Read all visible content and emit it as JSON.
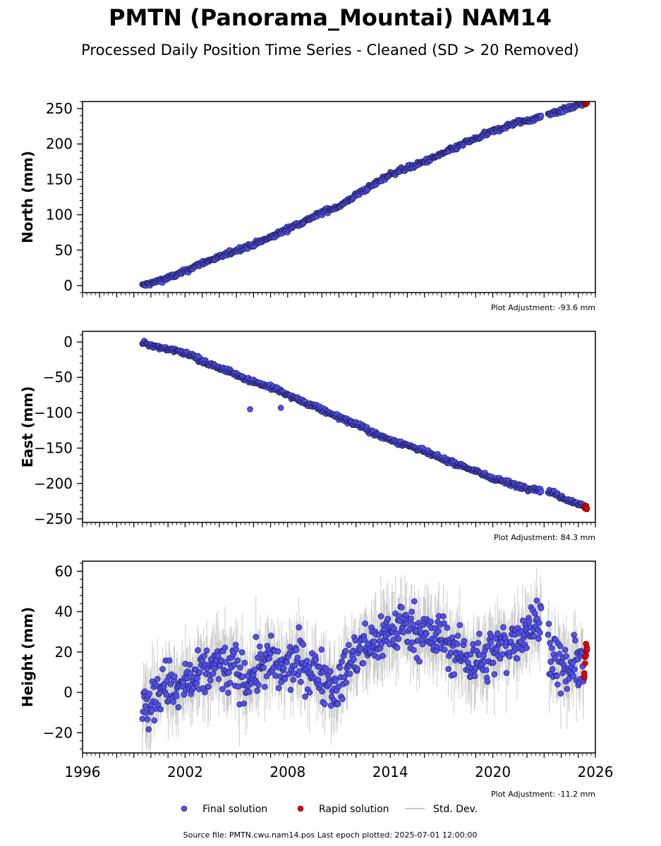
{
  "title": "PMTN (Panorama_Mountai) NAM14",
  "subtitle": "Processed Daily Position Time Series - Cleaned (SD > 20 Removed)",
  "colors": {
    "final": "#5050f0",
    "final_edge": "#1a1a40",
    "rapid": "#e00000",
    "stddev": "#b8b8b8",
    "axis": "#000000"
  },
  "legend": {
    "position": "bottom-center",
    "items": [
      {
        "label": "Final solution",
        "type": "dot",
        "color": "#5050f0"
      },
      {
        "label": "Rapid solution",
        "type": "dot",
        "color": "#e00000"
      },
      {
        "label": "Std. Dev.",
        "type": "line",
        "color": "#b8b8b8"
      }
    ]
  },
  "footer": "Source file: PMTN.cwu.nam14.pos  Last epoch plotted: 2025-07-01 12:00:00",
  "chart_data": [
    {
      "type": "scatter",
      "ylabel": "North (mm)",
      "adjustment": "Plot Adjustment: -93.6 mm",
      "xlim": [
        1996,
        2026
      ],
      "ylim": [
        -10,
        260
      ],
      "yticks": [
        0,
        50,
        100,
        150,
        200,
        250
      ],
      "xticks": [],
      "grid": false,
      "series": [
        {
          "name": "Final solution",
          "x": [
            1999.5,
            2000.0,
            2000.5,
            2001.0,
            2001.5,
            2002.0,
            2002.5,
            2003.0,
            2003.5,
            2004.0,
            2004.5,
            2005.0,
            2005.5,
            2006.0,
            2006.5,
            2007.0,
            2007.5,
            2008.0,
            2008.5,
            2009.0,
            2009.5,
            2010.0,
            2010.5,
            2011.0,
            2011.5,
            2012.0,
            2012.5,
            2013.0,
            2013.5,
            2014.0,
            2014.5,
            2015.0,
            2015.5,
            2016.0,
            2016.5,
            2017.0,
            2017.5,
            2018.0,
            2018.5,
            2019.0,
            2019.5,
            2020.0,
            2020.5,
            2021.0,
            2021.5,
            2022.0,
            2022.5,
            2023.0,
            2023.5,
            2024.0,
            2024.5,
            2025.0,
            2025.3
          ],
          "y": [
            0,
            3,
            7,
            11,
            15,
            20,
            26,
            32,
            36,
            40,
            45,
            50,
            54,
            58,
            63,
            68,
            74,
            80,
            86,
            91,
            97,
            103,
            108,
            112,
            119,
            128,
            135,
            142,
            150,
            157,
            162,
            166,
            170,
            175,
            180,
            186,
            191,
            197,
            203,
            207,
            213,
            218,
            222,
            227,
            231,
            233,
            236,
            241,
            244,
            247,
            251,
            255,
            257
          ],
          "scatter": 3
        },
        {
          "name": "Rapid solution",
          "x": [
            2025.35,
            2025.4,
            2025.45,
            2025.5
          ],
          "y": [
            257,
            258,
            257,
            259
          ],
          "scatter": 1
        }
      ]
    },
    {
      "type": "scatter",
      "ylabel": "East (mm)",
      "adjustment": "Plot Adjustment: 84.3 mm",
      "xlim": [
        1996,
        2026
      ],
      "ylim": [
        -255,
        15
      ],
      "yticks": [
        0,
        -50,
        -100,
        -150,
        -200,
        -250
      ],
      "xticks": [],
      "grid": false,
      "series": [
        {
          "name": "Final solution",
          "x": [
            1999.5,
            2000.0,
            2000.5,
            2001.0,
            2001.5,
            2002.0,
            2002.5,
            2003.0,
            2003.5,
            2004.0,
            2004.5,
            2005.0,
            2005.5,
            2006.0,
            2006.5,
            2007.0,
            2007.5,
            2008.0,
            2008.5,
            2009.0,
            2009.5,
            2010.0,
            2010.5,
            2011.0,
            2011.5,
            2012.0,
            2012.5,
            2013.0,
            2013.5,
            2014.0,
            2014.5,
            2015.0,
            2015.5,
            2016.0,
            2016.5,
            2017.0,
            2017.5,
            2018.0,
            2018.5,
            2019.0,
            2019.5,
            2020.0,
            2020.5,
            2021.0,
            2021.5,
            2022.0,
            2022.5,
            2023.0,
            2023.5,
            2024.0,
            2024.5,
            2025.0,
            2025.3
          ],
          "y": [
            0,
            -5,
            -8,
            -10,
            -12,
            -15,
            -20,
            -28,
            -32,
            -37,
            -41,
            -46,
            -51,
            -56,
            -60,
            -64,
            -69,
            -75,
            -80,
            -86,
            -91,
            -96,
            -101,
            -106,
            -111,
            -116,
            -122,
            -128,
            -134,
            -138,
            -142,
            -146,
            -150,
            -155,
            -160,
            -165,
            -169,
            -173,
            -178,
            -183,
            -188,
            -192,
            -196,
            -200,
            -203,
            -206,
            -208,
            -210,
            -213,
            -219,
            -224,
            -229,
            -232
          ],
          "scatter": 3
        },
        {
          "name": "Rapid solution",
          "x": [
            2025.35,
            2025.4,
            2025.45,
            2025.5
          ],
          "y": [
            -232,
            -234,
            -233,
            -235
          ],
          "scatter": 1
        }
      ],
      "outliers": {
        "x": [
          2005.8,
          2007.6
        ],
        "y": [
          -95,
          -93
        ]
      }
    },
    {
      "type": "scatter",
      "ylabel": "Height (mm)",
      "adjustment": "Plot Adjustment: -11.2 mm",
      "xlim": [
        1996,
        2026
      ],
      "ylim": [
        -30,
        65
      ],
      "yticks": [
        60,
        40,
        20,
        0,
        -20
      ],
      "xticks": [
        1996,
        2002,
        2008,
        2014,
        2020,
        2026
      ],
      "grid": false,
      "series": [
        {
          "name": "Final solution",
          "x": [
            1999.5,
            2000.0,
            2000.5,
            2001.0,
            2001.5,
            2002.0,
            2002.5,
            2003.0,
            2003.5,
            2004.0,
            2004.5,
            2005.0,
            2005.5,
            2006.0,
            2006.5,
            2007.0,
            2007.5,
            2008.0,
            2008.5,
            2009.0,
            2009.5,
            2010.0,
            2010.5,
            2011.0,
            2011.5,
            2012.0,
            2012.5,
            2013.0,
            2013.5,
            2014.0,
            2014.5,
            2015.0,
            2015.5,
            2016.0,
            2016.5,
            2017.0,
            2017.5,
            2018.0,
            2018.5,
            2019.0,
            2019.5,
            2020.0,
            2020.5,
            2021.0,
            2021.5,
            2022.0,
            2022.5,
            2023.0,
            2023.5,
            2024.0,
            2024.5,
            2025.0,
            2025.3
          ],
          "y": [
            -3,
            -8,
            2,
            5,
            -2,
            6,
            4,
            8,
            12,
            14,
            10,
            12,
            6,
            9,
            14,
            15,
            10,
            12,
            16,
            13,
            10,
            9,
            6,
            2,
            14,
            18,
            22,
            24,
            28,
            30,
            32,
            34,
            31,
            30,
            26,
            28,
            22,
            20,
            16,
            18,
            15,
            20,
            22,
            24,
            28,
            32,
            34,
            36,
            18,
            12,
            10,
            14,
            16
          ],
          "scatter": 11
        },
        {
          "name": "Rapid solution",
          "x": [
            2025.35,
            2025.4,
            2025.45,
            2025.5
          ],
          "y": [
            10,
            15,
            18,
            22
          ],
          "scatter": 3
        }
      ]
    }
  ]
}
